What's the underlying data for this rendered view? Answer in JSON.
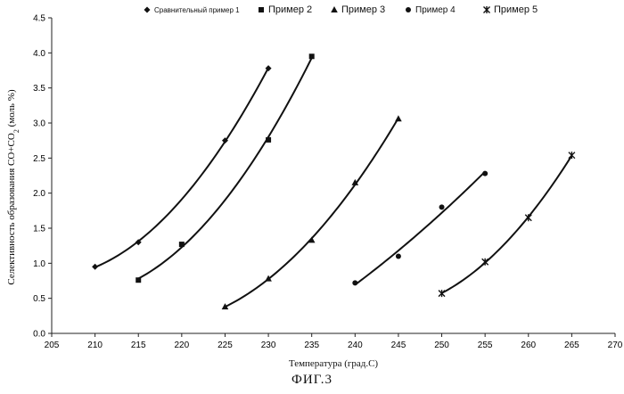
{
  "figure_caption": "ФИГ.3",
  "chart_data": {
    "type": "line",
    "title": "",
    "xlabel": "Температура (град.С)",
    "ylabel_main": "Селективность образования CO+CO",
    "ylabel_sub": "2",
    "ylabel_tail": " (моль %)",
    "xlim": [
      205,
      270
    ],
    "ylim": [
      0,
      4.5
    ],
    "x_ticks": [
      205,
      210,
      215,
      220,
      225,
      230,
      235,
      240,
      245,
      250,
      255,
      260,
      265,
      270
    ],
    "y_ticks": [
      0,
      0.5,
      1.0,
      1.5,
      2.0,
      2.5,
      3.0,
      3.5,
      4.0,
      4.5
    ],
    "y_tick_labels": [
      "0.0",
      "0.5",
      "1.0",
      "1.5",
      "2.0",
      "2.5",
      "3.0",
      "3.5",
      "4.0",
      "4.5"
    ],
    "grid": false,
    "legend_position": "top",
    "series": [
      {
        "name": "Сравнительный пример 1",
        "marker": "diamond",
        "x": [
          210,
          215,
          225,
          230
        ],
        "y": [
          0.95,
          1.3,
          2.75,
          3.78
        ]
      },
      {
        "name": "Пример 2",
        "marker": "square",
        "x": [
          215,
          220,
          230,
          235
        ],
        "y": [
          0.76,
          1.27,
          2.76,
          3.95
        ]
      },
      {
        "name": "Пример 3",
        "marker": "triangle",
        "x": [
          225,
          230,
          235,
          240,
          245
        ],
        "y": [
          0.38,
          0.78,
          1.33,
          2.15,
          3.06
        ]
      },
      {
        "name": "Пример 4",
        "marker": "circle",
        "x": [
          240,
          245,
          250,
          255
        ],
        "y": [
          0.72,
          1.1,
          1.8,
          2.28
        ]
      },
      {
        "name": "Пример 5",
        "marker": "star",
        "x": [
          250,
          255,
          260,
          265
        ],
        "y": [
          0.57,
          1.02,
          1.65,
          2.54
        ]
      }
    ]
  }
}
